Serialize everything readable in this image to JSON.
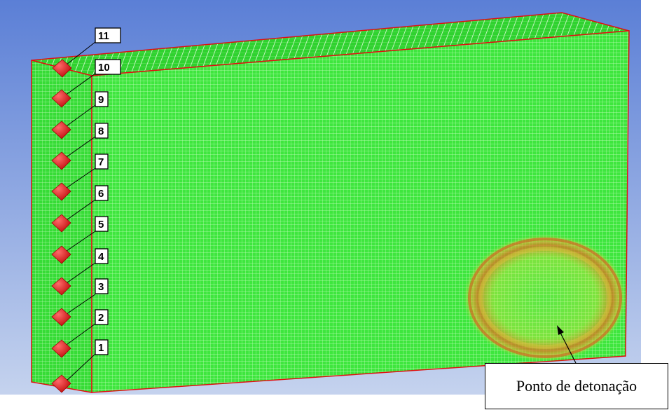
{
  "figure": {
    "callout_text": "Ponto de detonação",
    "gauge_labels": [
      "1",
      "2",
      "3",
      "4",
      "5",
      "6",
      "7",
      "8",
      "9",
      "10",
      "11"
    ]
  },
  "colors": {
    "background_top": "#5b7fd6",
    "background_bottom": "#c9d6ef",
    "mesh_green": "#3ee63e",
    "mesh_lines": "#b8ffb0",
    "edge_red": "#e01010",
    "gauge_red": "#e81515",
    "hotspot_yellow": "#f0e040",
    "hotspot_orange": "#e07020"
  }
}
